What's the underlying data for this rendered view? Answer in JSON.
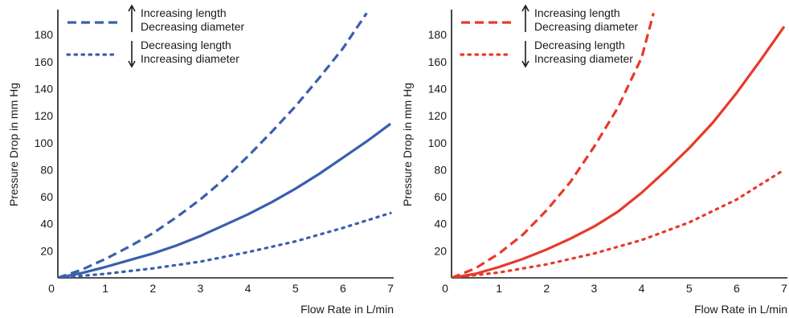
{
  "chart_data": [
    {
      "type": "line",
      "color": "#3a5fad",
      "xlabel": "Flow Rate in L/min",
      "ylabel": "Pressure Drop in mm Hg",
      "xlim": [
        0,
        7
      ],
      "ylim": [
        0,
        195
      ],
      "xticks": [
        "0",
        "1",
        "2",
        "3",
        "4",
        "5",
        "6",
        "7"
      ],
      "yticks": [
        "20",
        "40",
        "60",
        "80",
        "100",
        "120",
        "140",
        "160",
        "180"
      ],
      "grid": false,
      "legend": [
        {
          "style": "dashed",
          "arrow": "up",
          "line1": "Increasing length",
          "line2": "Decreasing diameter"
        },
        {
          "style": "dotted",
          "arrow": "down",
          "line1": "Decreasing length",
          "line2": "Increasing diameter"
        }
      ],
      "series": [
        {
          "style": "solid",
          "x": [
            0,
            0.5,
            1,
            1.5,
            2,
            2.5,
            3,
            3.5,
            4,
            4.5,
            5,
            5.5,
            6,
            6.5,
            7
          ],
          "y": [
            0,
            3.5,
            8,
            13,
            18,
            24,
            31,
            39,
            47,
            56,
            66,
            77,
            89,
            101,
            114
          ]
        },
        {
          "style": "dashed",
          "x": [
            0,
            0.5,
            1,
            1.5,
            2,
            2.5,
            3,
            3.5,
            4,
            4.5,
            5,
            5.5,
            6,
            6.5
          ],
          "y": [
            0,
            6,
            14,
            23,
            33,
            45,
            58,
            73,
            90,
            108,
            127,
            148,
            170,
            196
          ]
        },
        {
          "style": "dotted",
          "x": [
            0,
            1,
            2,
            3,
            4,
            5,
            6,
            7
          ],
          "y": [
            0,
            3,
            7,
            12,
            19,
            27,
            37,
            48
          ]
        }
      ]
    },
    {
      "type": "line",
      "color": "#e8392b",
      "xlabel": "Flow Rate in L/min",
      "ylabel": "Pressure Drop in mm Hg",
      "xlim": [
        0,
        7
      ],
      "ylim": [
        0,
        195
      ],
      "xticks": [
        "0",
        "1",
        "2",
        "3",
        "4",
        "5",
        "6",
        "7"
      ],
      "yticks": [
        "20",
        "40",
        "60",
        "80",
        "100",
        "120",
        "140",
        "160",
        "180"
      ],
      "grid": false,
      "legend": [
        {
          "style": "dashed",
          "arrow": "up",
          "line1": "Increasing length",
          "line2": "Decreasing diameter"
        },
        {
          "style": "dotted",
          "arrow": "down",
          "line1": "Decreasing length",
          "line2": "Increasing diameter"
        }
      ],
      "series": [
        {
          "style": "solid",
          "x": [
            0,
            0.5,
            1,
            1.5,
            2,
            2.5,
            3,
            3.5,
            4,
            4.5,
            5,
            5.5,
            6,
            6.5,
            7
          ],
          "y": [
            0,
            3,
            8,
            14,
            21,
            29,
            38,
            49,
            63,
            79,
            96,
            115,
            137,
            161,
            186
          ]
        },
        {
          "style": "dashed",
          "x": [
            0,
            0.5,
            1,
            1.5,
            2,
            2.5,
            3,
            3.5,
            4,
            4.25
          ],
          "y": [
            0,
            7,
            18,
            32,
            50,
            71,
            97,
            126,
            163,
            196
          ]
        },
        {
          "style": "dotted",
          "x": [
            0,
            1,
            2,
            3,
            4,
            5,
            6,
            7
          ],
          "y": [
            0,
            4,
            10,
            18,
            28,
            41,
            58,
            80
          ]
        }
      ]
    }
  ]
}
